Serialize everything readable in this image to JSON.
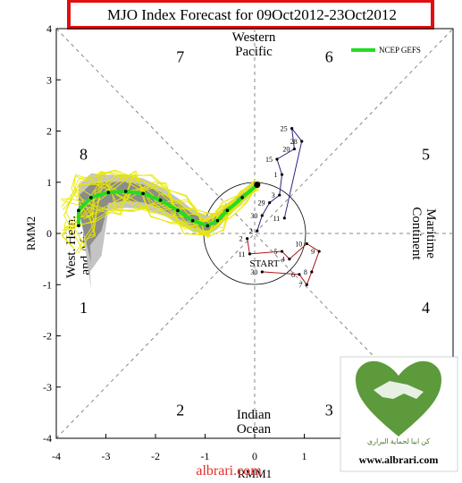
{
  "chart_data": {
    "type": "line",
    "title": "MJO Index Forecast for 09Oct2012-23Oct2012",
    "xlabel": "RMM1",
    "ylabel": "RMM2",
    "xlim": [
      -4,
      4
    ],
    "ylim": [
      -4,
      4
    ],
    "xticks": [
      "-4",
      "-3",
      "-2",
      "-1",
      "0",
      "1",
      "2",
      "3",
      "4"
    ],
    "yticks": [
      "-4",
      "-3",
      "-2",
      "-1",
      "0",
      "1",
      "2",
      "3",
      "4"
    ],
    "phase_labels": [
      {
        "text": "1",
        "x": -3.45,
        "y": -1.45
      },
      {
        "text": "2",
        "x": -1.5,
        "y": -3.45
      },
      {
        "text": "3",
        "x": 1.5,
        "y": -3.45
      },
      {
        "text": "4",
        "x": 3.45,
        "y": -1.45
      },
      {
        "text": "5",
        "x": 3.45,
        "y": 1.55
      },
      {
        "text": "6",
        "x": 1.5,
        "y": 3.45
      },
      {
        "text": "7",
        "x": -1.5,
        "y": 3.45
      },
      {
        "text": "8",
        "x": -3.45,
        "y": 1.55
      }
    ],
    "regions": {
      "western_pacific": "Western\nPacific",
      "indian_ocean": "Indian\nOcean",
      "maritime_continent": "Maritime\nContinent",
      "west_hem_africa": "West. Hem.\nand Africa"
    },
    "legend": {
      "entry": "NCEP GEFS",
      "placement": "top-right",
      "color": "#22dd22"
    },
    "start_label": "START",
    "colors": {
      "title_box": "#e01010",
      "ensemble": "#e8e800",
      "spread_dark": "#8c8c8c",
      "spread_light": "#c4c4c4",
      "mean": "#22dd22",
      "obs_aug": "#b01010",
      "obs_sep": "#302080"
    },
    "series": [
      {
        "name": "NCEP GEFS",
        "points": [
          [
            0.05,
            0.95
          ],
          [
            -0.25,
            0.7
          ],
          [
            -0.55,
            0.45
          ],
          [
            -0.75,
            0.25
          ],
          [
            -0.95,
            0.15
          ],
          [
            -1.25,
            0.25
          ],
          [
            -1.55,
            0.45
          ],
          [
            -1.9,
            0.65
          ],
          [
            -2.25,
            0.78
          ],
          [
            -2.6,
            0.82
          ],
          [
            -2.95,
            0.8
          ],
          [
            -3.3,
            0.7
          ],
          [
            -3.55,
            0.45
          ],
          [
            -3.55,
            0.15
          ]
        ]
      },
      {
        "name": "observed_aug",
        "day_labels": [
          "2",
          "11",
          "5",
          "4",
          "10",
          "9",
          "8",
          "7",
          "6",
          "30"
        ],
        "points": [
          [
            -0.15,
            -0.1
          ],
          [
            -0.1,
            -0.4
          ],
          [
            0.55,
            -0.35
          ],
          [
            0.7,
            -0.5
          ],
          [
            1.05,
            -0.2
          ],
          [
            1.3,
            -0.35
          ],
          [
            1.15,
            -0.75
          ],
          [
            1.05,
            -1.0
          ],
          [
            0.9,
            -0.8
          ],
          [
            0.15,
            -0.75
          ]
        ]
      },
      {
        "name": "observed_sep",
        "day_labels": [
          "2",
          "30",
          "29",
          "3",
          "1",
          "15",
          "20",
          "25",
          "28",
          "11"
        ],
        "points": [
          [
            0.05,
            0.05
          ],
          [
            0.15,
            0.35
          ],
          [
            0.3,
            0.6
          ],
          [
            0.5,
            0.75
          ],
          [
            0.55,
            1.15
          ],
          [
            0.45,
            1.45
          ],
          [
            0.8,
            1.65
          ],
          [
            0.75,
            2.05
          ],
          [
            0.95,
            1.8
          ],
          [
            0.6,
            0.3
          ]
        ]
      }
    ]
  },
  "watermark": {
    "site": "www.albrari.com",
    "arabic": "كن ابيا لحماية البراري",
    "footer": "albrari.com"
  }
}
